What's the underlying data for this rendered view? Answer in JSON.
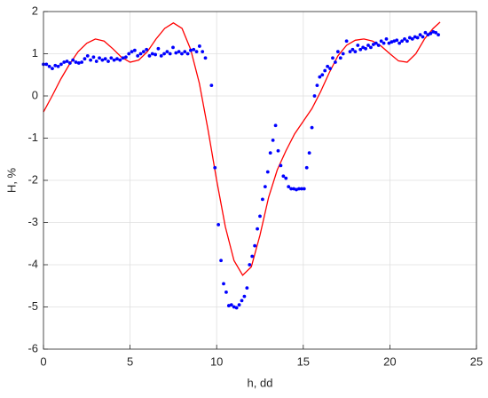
{
  "chart_data": {
    "type": "scatter",
    "xlabel": "h, dd",
    "ylabel": "H, %",
    "xlim": [
      0,
      25
    ],
    "ylim": [
      -6,
      2
    ],
    "xticks": [
      0,
      5,
      10,
      15,
      20,
      25
    ],
    "yticks": [
      -6,
      -5,
      -4,
      -3,
      -2,
      -1,
      0,
      1,
      2
    ],
    "grid": true,
    "series": [
      {
        "type": "scatter",
        "color": "#0000ff",
        "x": [
          0,
          0.17,
          0.34,
          0.51,
          0.68,
          0.85,
          1.02,
          1.19,
          1.36,
          1.53,
          1.7,
          1.87,
          2.04,
          2.21,
          2.38,
          2.55,
          2.72,
          2.89,
          3.06,
          3.23,
          3.4,
          3.57,
          3.74,
          3.91,
          4.08,
          4.25,
          4.42,
          4.59,
          4.76,
          4.93,
          5.1,
          5.27,
          5.44,
          5.61,
          5.78,
          5.95,
          6.12,
          6.29,
          6.46,
          6.63,
          6.8,
          6.97,
          7.14,
          7.31,
          7.48,
          7.65,
          7.82,
          7.99,
          8.16,
          8.33,
          8.5,
          8.67,
          8.84,
          9.01,
          9.18,
          9.35,
          9.7,
          9.9,
          10.1,
          10.25,
          10.4,
          10.55,
          10.7,
          10.85,
          11.0,
          11.15,
          11.3,
          11.45,
          11.6,
          11.75,
          11.9,
          12.05,
          12.2,
          12.35,
          12.5,
          12.65,
          12.8,
          12.95,
          13.1,
          13.25,
          13.4,
          13.55,
          13.7,
          13.85,
          14.0,
          14.15,
          14.3,
          14.45,
          14.6,
          14.75,
          14.9,
          15.05,
          15.2,
          15.35,
          15.5,
          15.65,
          15.8,
          15.95,
          16.1,
          16.25,
          16.4,
          16.55,
          16.7,
          16.85,
          17.0,
          17.15,
          17.3,
          17.5,
          17.7,
          17.85,
          18.0,
          18.15,
          18.3,
          18.45,
          18.6,
          18.75,
          18.9,
          19.05,
          19.2,
          19.35,
          19.5,
          19.65,
          19.8,
          19.95,
          20.1,
          20.25,
          20.4,
          20.55,
          20.7,
          20.85,
          21.0,
          21.15,
          21.3,
          21.45,
          21.6,
          21.75,
          21.9,
          22.05,
          22.2,
          22.35,
          22.5,
          22.65,
          22.8
        ],
        "values": [
          0.75,
          0.75,
          0.7,
          0.65,
          0.72,
          0.7,
          0.75,
          0.8,
          0.82,
          0.78,
          0.85,
          0.8,
          0.78,
          0.8,
          0.88,
          0.95,
          0.85,
          0.92,
          0.82,
          0.9,
          0.85,
          0.88,
          0.82,
          0.9,
          0.85,
          0.88,
          0.85,
          0.9,
          0.92,
          1.0,
          1.05,
          1.08,
          0.95,
          1.0,
          1.05,
          1.1,
          0.95,
          1.0,
          0.98,
          1.12,
          0.95,
          1.0,
          1.05,
          1.0,
          1.15,
          1.02,
          1.05,
          1.0,
          1.05,
          1.0,
          1.08,
          1.1,
          1.05,
          1.18,
          1.05,
          0.9,
          0.25,
          -1.7,
          -3.05,
          -3.9,
          -4.45,
          -4.65,
          -4.97,
          -4.95,
          -5.0,
          -5.02,
          -4.95,
          -4.85,
          -4.75,
          -4.55,
          -4.0,
          -3.8,
          -3.55,
          -3.15,
          -2.85,
          -2.45,
          -2.15,
          -1.8,
          -1.35,
          -1.05,
          -0.7,
          -1.3,
          -1.65,
          -1.9,
          -1.95,
          -2.15,
          -2.2,
          -2.2,
          -2.22,
          -2.2,
          -2.2,
          -2.2,
          -1.7,
          -1.35,
          -0.75,
          0.0,
          0.25,
          0.45,
          0.5,
          0.6,
          0.7,
          0.65,
          0.9,
          0.8,
          1.05,
          0.9,
          1.0,
          1.3,
          1.05,
          1.1,
          1.05,
          1.2,
          1.1,
          1.15,
          1.12,
          1.2,
          1.15,
          1.22,
          1.25,
          1.2,
          1.3,
          1.25,
          1.35,
          1.25,
          1.28,
          1.3,
          1.32,
          1.25,
          1.3,
          1.35,
          1.3,
          1.38,
          1.35,
          1.4,
          1.38,
          1.45,
          1.4,
          1.5,
          1.45,
          1.48,
          1.52,
          1.5,
          1.45
        ]
      },
      {
        "type": "line",
        "color": "#ff0000",
        "x": [
          0,
          0.5,
          1,
          1.5,
          2,
          2.5,
          3,
          3.5,
          4,
          4.5,
          5,
          5.5,
          6,
          6.5,
          7,
          7.5,
          8,
          8.5,
          9,
          9.5,
          10,
          10.5,
          11,
          11.5,
          12,
          12.5,
          13,
          13.5,
          14,
          14.5,
          15,
          15.5,
          16,
          16.5,
          17,
          17.5,
          18,
          18.5,
          19,
          19.5,
          20,
          20.5,
          21,
          21.5,
          22,
          22.5,
          22.9
        ],
        "values": [
          -0.38,
          0.0,
          0.4,
          0.75,
          1.05,
          1.25,
          1.35,
          1.3,
          1.12,
          0.92,
          0.8,
          0.85,
          1.05,
          1.35,
          1.6,
          1.73,
          1.6,
          1.1,
          0.3,
          -0.8,
          -2.0,
          -3.1,
          -3.9,
          -4.25,
          -4.05,
          -3.3,
          -2.4,
          -1.75,
          -1.3,
          -0.9,
          -0.6,
          -0.3,
          0.1,
          0.55,
          0.95,
          1.2,
          1.32,
          1.35,
          1.3,
          1.18,
          1.0,
          0.83,
          0.8,
          1.0,
          1.35,
          1.6,
          1.75
        ]
      }
    ]
  }
}
